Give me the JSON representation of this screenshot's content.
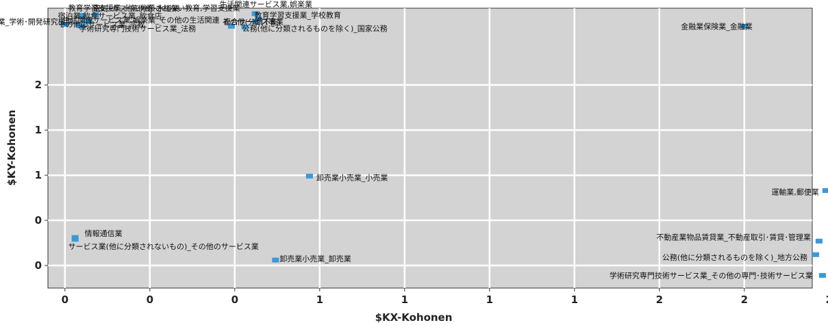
{
  "chart_data": {
    "type": "scatter",
    "title": "",
    "xlabel": "$KX-Kohonen",
    "ylabel": "$KY-Kohonen",
    "xlim": [
      -0.05,
      2.2
    ],
    "ylim": [
      -0.25,
      2.85
    ],
    "x_ticks": [
      {
        "value": 0,
        "label": "0"
      },
      {
        "value": 0.25,
        "label": "0"
      },
      {
        "value": 0.5,
        "label": "0"
      },
      {
        "value": 0.75,
        "label": "1"
      },
      {
        "value": 1.0,
        "label": "1"
      },
      {
        "value": 1.25,
        "label": "1"
      },
      {
        "value": 1.5,
        "label": "1"
      },
      {
        "value": 1.75,
        "label": "2"
      },
      {
        "value": 2.0,
        "label": "2"
      },
      {
        "value": 2.25,
        "label": "2"
      }
    ],
    "y_ticks": [
      {
        "value": 0,
        "label": "0"
      },
      {
        "value": 0.5,
        "label": "0"
      },
      {
        "value": 1.0,
        "label": "1"
      },
      {
        "value": 1.5,
        "label": "1"
      },
      {
        "value": 2.0,
        "label": "2"
      }
    ],
    "grid": true,
    "marker_color": "#3a9ad9",
    "plot_background": "#d3d3d3",
    "points": [
      {
        "x": 0.09,
        "y": 2.78,
        "label": "電気･ガス･熱供給･水道業"
      },
      {
        "x": 0.05,
        "y": 2.77,
        "label": "教育学習支援業_他に分類されない教育,学習支援業"
      },
      {
        "x": 0.06,
        "y": 2.72,
        "label": "宿泊業,飲食サービス業_飲食店"
      },
      {
        "x": 0.07,
        "y": 2.7,
        "label": "生活関連サービス業,娯楽業_その他の生活関連"
      },
      {
        "x": 0.0,
        "y": 2.67,
        "label": "学術研究専門技術サービス業_学術･開発研究機関"
      },
      {
        "x": 0.04,
        "y": 2.67,
        "label": "その他のサービス業_宗教"
      },
      {
        "x": 0.05,
        "y": 2.65,
        "label": "学術研究専門技術サービス業_法務"
      },
      {
        "x": 0.56,
        "y": 2.79,
        "label": "生活関連サービス業,娯楽業"
      },
      {
        "x": 0.57,
        "y": 2.73,
        "label": "教育学習支援業_学校教育"
      },
      {
        "x": 0.56,
        "y": 2.7,
        "label": "その他(分類不能)"
      },
      {
        "x": 0.49,
        "y": 2.65,
        "label": "複合サービス事業"
      },
      {
        "x": 0.53,
        "y": 2.64,
        "label": "公務(他に分類されるものを除く)_国家公務"
      },
      {
        "x": 2.0,
        "y": 2.65,
        "label": "金融業保険業_金融業"
      },
      {
        "x": 0.72,
        "y": 0.99,
        "label": "卸売業小売業_小売業"
      },
      {
        "x": 2.24,
        "y": 0.83,
        "label": "運輸業,郵便業"
      },
      {
        "x": 0.03,
        "y": 0.31,
        "label": "情報通信業"
      },
      {
        "x": 0.03,
        "y": 0.29,
        "label": "サービス業(他に分類されないもの)_その他のサービス業"
      },
      {
        "x": 0.62,
        "y": 0.06,
        "label": "卸売業小売業_卸売業"
      },
      {
        "x": 2.22,
        "y": 0.27,
        "label": "不動産業物品賃貸業_不動産取引･賃貸･管理業"
      },
      {
        "x": 2.21,
        "y": 0.12,
        "label": "公務(他に分類されるものを除く)_地方公務"
      },
      {
        "x": 2.23,
        "y": -0.11,
        "label": "学術研究専門技術サービス業_その他の専門･技術サービス業"
      }
    ]
  }
}
